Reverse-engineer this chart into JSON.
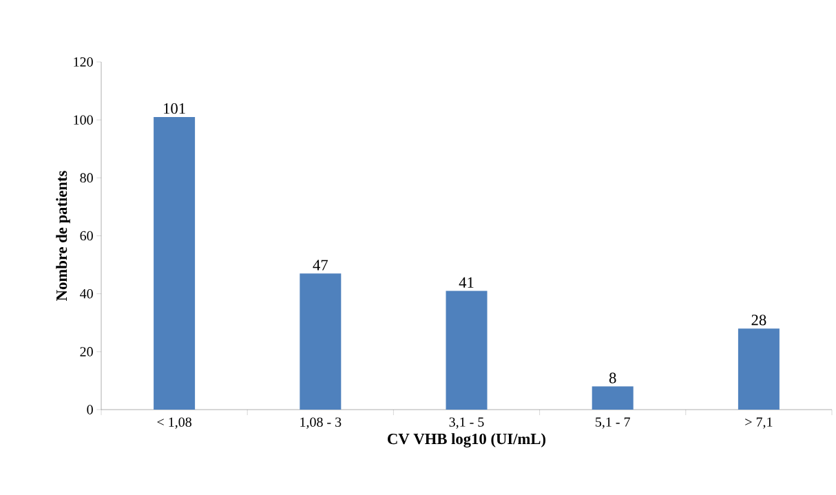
{
  "chart_data": {
    "type": "bar",
    "xlabel": "CV VHB  log10 (UI/mL)",
    "ylabel": "Nombre de patients",
    "categories": [
      "< 1,08",
      "1,08 - 3",
      "3,1 - 5",
      "5,1 - 7",
      "> 7,1"
    ],
    "values": [
      101,
      47,
      41,
      8,
      28
    ],
    "data_labels": true,
    "color": "#4f81bd",
    "ylim": [
      0,
      120
    ],
    "yticks": [
      0,
      20,
      40,
      60,
      80,
      100,
      120
    ],
    "grid": false
  }
}
